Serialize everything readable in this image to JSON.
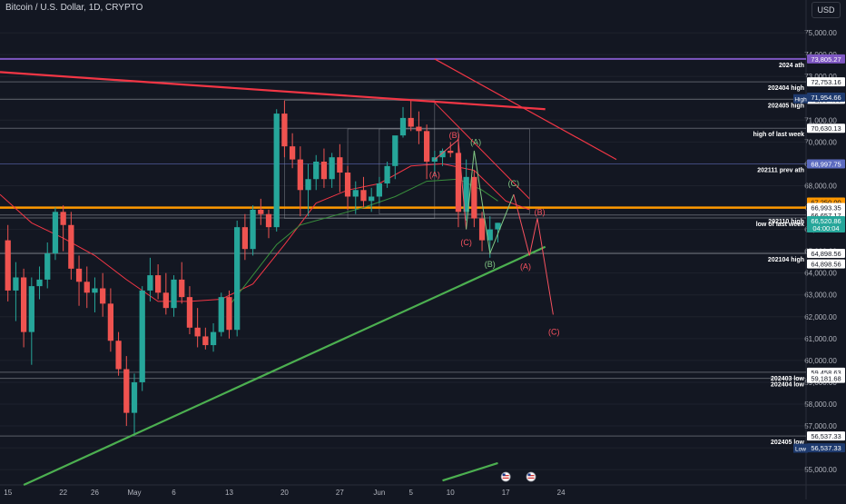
{
  "header": {
    "symbol_title": "Bitcoin / U.S. Dollar, 1D, CRYPTO",
    "currency_button": "USD"
  },
  "colors": {
    "background": "#131722",
    "up": "#26a69a",
    "down": "#ef5350",
    "purple": "#7e57c2",
    "orange": "#ff9800",
    "green_line": "#4caf50",
    "red_line": "#f23645",
    "ma_green": "#2e7d32",
    "level_line": "#9598a1",
    "wave_red": "#f7525f",
    "wave_green": "#81c784"
  },
  "icons": [
    "us-flag-event-icon",
    "us-flag-event-icon"
  ],
  "chart_data": {
    "type": "candlestick",
    "title": "Bitcoin / U.S. Dollar, 1D, CRYPTO",
    "ylim": [
      54300,
      76500
    ],
    "y_ticks": [
      55000,
      56000,
      57000,
      58000,
      59000,
      60000,
      61000,
      62000,
      63000,
      64000,
      65000,
      66000,
      67000,
      68000,
      69000,
      70000,
      71000,
      72000,
      73000,
      74000,
      75000
    ],
    "x_day_range": [
      -1,
      101
    ],
    "x_ticks": [
      {
        "label": "15",
        "day": 0
      },
      {
        "label": "22",
        "day": 7
      },
      {
        "label": "26",
        "day": 11
      },
      {
        "label": "May",
        "day": 16
      },
      {
        "label": "6",
        "day": 21
      },
      {
        "label": "13",
        "day": 28
      },
      {
        "label": "20",
        "day": 35
      },
      {
        "label": "27",
        "day": 42
      },
      {
        "label": "Jun",
        "day": 47
      },
      {
        "label": "5",
        "day": 51
      },
      {
        "label": "10",
        "day": 56
      },
      {
        "label": "17",
        "day": 63
      },
      {
        "label": "24",
        "day": 70
      }
    ],
    "candles": [
      {
        "day": 0,
        "o": 65500,
        "h": 66200,
        "l": 62700,
        "c": 63200
      },
      {
        "day": 1,
        "o": 63200,
        "h": 64500,
        "l": 61800,
        "c": 63800
      },
      {
        "day": 2,
        "o": 63800,
        "h": 64200,
        "l": 60600,
        "c": 61300
      },
      {
        "day": 3,
        "o": 61300,
        "h": 63800,
        "l": 59800,
        "c": 63400
      },
      {
        "day": 4,
        "o": 63400,
        "h": 64300,
        "l": 62800,
        "c": 63700
      },
      {
        "day": 5,
        "o": 63700,
        "h": 65400,
        "l": 63300,
        "c": 64900
      },
      {
        "day": 6,
        "o": 64900,
        "h": 67000,
        "l": 64600,
        "c": 66800
      },
      {
        "day": 7,
        "o": 66800,
        "h": 67100,
        "l": 65000,
        "c": 66200
      },
      {
        "day": 8,
        "o": 66200,
        "h": 66800,
        "l": 63700,
        "c": 64200
      },
      {
        "day": 9,
        "o": 64200,
        "h": 64800,
        "l": 62500,
        "c": 63600
      },
      {
        "day": 10,
        "o": 63600,
        "h": 64300,
        "l": 62400,
        "c": 63100
      },
      {
        "day": 11,
        "o": 63100,
        "h": 63800,
        "l": 62200,
        "c": 63300
      },
      {
        "day": 12,
        "o": 63300,
        "h": 64000,
        "l": 62000,
        "c": 62600
      },
      {
        "day": 13,
        "o": 62600,
        "h": 63300,
        "l": 60400,
        "c": 60900
      },
      {
        "day": 14,
        "o": 60900,
        "h": 61300,
        "l": 59300,
        "c": 59600
      },
      {
        "day": 15,
        "o": 59600,
        "h": 60200,
        "l": 57000,
        "c": 57600
      },
      {
        "day": 16,
        "o": 57600,
        "h": 59400,
        "l": 56550,
        "c": 59000
      },
      {
        "day": 17,
        "o": 59000,
        "h": 63400,
        "l": 58600,
        "c": 63200
      },
      {
        "day": 18,
        "o": 63200,
        "h": 64700,
        "l": 62700,
        "c": 63900
      },
      {
        "day": 19,
        "o": 63900,
        "h": 64400,
        "l": 62800,
        "c": 63100
      },
      {
        "day": 20,
        "o": 63100,
        "h": 64000,
        "l": 62100,
        "c": 62400
      },
      {
        "day": 21,
        "o": 62400,
        "h": 63900,
        "l": 62000,
        "c": 63700
      },
      {
        "day": 22,
        "o": 63700,
        "h": 64500,
        "l": 62600,
        "c": 62900
      },
      {
        "day": 23,
        "o": 62900,
        "h": 63400,
        "l": 61200,
        "c": 61500
      },
      {
        "day": 24,
        "o": 61500,
        "h": 62400,
        "l": 60600,
        "c": 61100
      },
      {
        "day": 25,
        "o": 61100,
        "h": 61500,
        "l": 60500,
        "c": 60700
      },
      {
        "day": 26,
        "o": 60700,
        "h": 61700,
        "l": 60400,
        "c": 61300
      },
      {
        "day": 27,
        "o": 61300,
        "h": 63100,
        "l": 61100,
        "c": 62900
      },
      {
        "day": 28,
        "o": 62900,
        "h": 63200,
        "l": 61000,
        "c": 61400
      },
      {
        "day": 29,
        "o": 61400,
        "h": 66400,
        "l": 61100,
        "c": 66100
      },
      {
        "day": 30,
        "o": 66100,
        "h": 66700,
        "l": 64600,
        "c": 65100
      },
      {
        "day": 31,
        "o": 65100,
        "h": 67100,
        "l": 64800,
        "c": 66900
      },
      {
        "day": 32,
        "o": 66900,
        "h": 67400,
        "l": 66200,
        "c": 66700
      },
      {
        "day": 33,
        "o": 66700,
        "h": 66900,
        "l": 65600,
        "c": 66100
      },
      {
        "day": 34,
        "o": 66100,
        "h": 71500,
        "l": 65900,
        "c": 71300
      },
      {
        "day": 35,
        "o": 71300,
        "h": 71900,
        "l": 69300,
        "c": 69800
      },
      {
        "day": 36,
        "o": 69800,
        "h": 70400,
        "l": 68800,
        "c": 69200
      },
      {
        "day": 37,
        "o": 69200,
        "h": 69800,
        "l": 66600,
        "c": 67800
      },
      {
        "day": 38,
        "o": 67800,
        "h": 69000,
        "l": 66600,
        "c": 68300
      },
      {
        "day": 39,
        "o": 68300,
        "h": 69400,
        "l": 67800,
        "c": 69100
      },
      {
        "day": 40,
        "o": 69100,
        "h": 69700,
        "l": 67900,
        "c": 68300
      },
      {
        "day": 41,
        "o": 68300,
        "h": 69500,
        "l": 67900,
        "c": 69300
      },
      {
        "day": 42,
        "o": 69300,
        "h": 69900,
        "l": 67700,
        "c": 68600
      },
      {
        "day": 43,
        "o": 68600,
        "h": 68900,
        "l": 66900,
        "c": 67500
      },
      {
        "day": 44,
        "o": 67500,
        "h": 68200,
        "l": 66700,
        "c": 67800
      },
      {
        "day": 45,
        "o": 67800,
        "h": 68400,
        "l": 67000,
        "c": 67300
      },
      {
        "day": 46,
        "o": 67300,
        "h": 67900,
        "l": 66800,
        "c": 67500
      },
      {
        "day": 47,
        "o": 67500,
        "h": 68400,
        "l": 67200,
        "c": 68100
      },
      {
        "day": 48,
        "o": 68100,
        "h": 69100,
        "l": 67900,
        "c": 68900
      },
      {
        "day": 49,
        "o": 68900,
        "h": 70200,
        "l": 68300,
        "c": 70300
      },
      {
        "day": 50,
        "o": 70300,
        "h": 71600,
        "l": 70200,
        "c": 71100
      },
      {
        "day": 51,
        "o": 71100,
        "h": 71900,
        "l": 70500,
        "c": 70700
      },
      {
        "day": 52,
        "o": 70700,
        "h": 71400,
        "l": 69900,
        "c": 70500
      },
      {
        "day": 53,
        "o": 70500,
        "h": 70800,
        "l": 68300,
        "c": 69100
      },
      {
        "day": 54,
        "o": 69100,
        "h": 69600,
        "l": 68500,
        "c": 69300
      },
      {
        "day": 55,
        "o": 69300,
        "h": 69700,
        "l": 68900,
        "c": 69600
      },
      {
        "day": 56,
        "o": 69600,
        "h": 70000,
        "l": 69300,
        "c": 69500
      },
      {
        "day": 57,
        "o": 69500,
        "h": 70200,
        "l": 66100,
        "c": 66800
      },
      {
        "day": 58,
        "o": 66800,
        "h": 69200,
        "l": 66400,
        "c": 68400
      },
      {
        "day": 59,
        "o": 68400,
        "h": 68700,
        "l": 66100,
        "c": 66500
      },
      {
        "day": 60,
        "o": 66500,
        "h": 66800,
        "l": 65000,
        "c": 65500
      },
      {
        "day": 61,
        "o": 65500,
        "h": 66600,
        "l": 64700,
        "c": 66000
      },
      {
        "day": 62,
        "o": 66000,
        "h": 66300,
        "l": 65400,
        "c": 66300
      }
    ],
    "levels": [
      {
        "name": "2024ath-line",
        "price": 73805.27,
        "color": "#7e57c2",
        "width": 2,
        "label": "2024 ath",
        "tag": "73,805.27",
        "tag_color": "#7e57c2"
      },
      {
        "name": "202404-high-line",
        "price": 72753.16,
        "color": "#9598a1",
        "width": 1,
        "label": "202404 high",
        "tag": "72,753.16",
        "tag_color": "#ffffff"
      },
      {
        "name": "202405-high-line",
        "price": 71954.66,
        "color": "#9598a1",
        "width": 1,
        "label": "202405 high",
        "tag": "71,954.66",
        "tag_color": "#ffffff"
      },
      {
        "name": "high-of-last-week-line",
        "price": 70630.13,
        "color": "#9598a1",
        "width": 1,
        "label": "high of last week",
        "tag": "70,630.13",
        "tag_color": "#ffffff"
      },
      {
        "name": "202111-prev-ath-line",
        "price": 68997.75,
        "color": "#5c6bc0",
        "width": 1,
        "label": "202111 prev ath",
        "tag": "68,997.75",
        "tag_color": "#5c6bc0"
      },
      {
        "name": "orange-line",
        "price": 66993.35,
        "color": "#ff9800",
        "width": 2.5,
        "label": "",
        "tag": "",
        "tag_color": ""
      },
      {
        "name": "202110-high-line",
        "price": 66657.17,
        "color": "#9598a1",
        "width": 1,
        "label": "202110 high",
        "tag": "66,657.17",
        "tag_color": "#ffffff"
      },
      {
        "name": "low-of-last-week-line",
        "price": 66520.86,
        "color": "#9598a1",
        "width": 1,
        "label": "low of last week",
        "tag": "",
        "tag_color": ""
      },
      {
        "name": "202104-high-line",
        "price": 64898.56,
        "color": "#d1d4dc",
        "width": 1,
        "label": "202104 high",
        "tag": "64,898.56",
        "tag_color": "#ffffff"
      },
      {
        "name": "202403-low-line",
        "price": 59458.63,
        "color": "#9598a1",
        "width": 1,
        "label": "202403 low",
        "tag": "59,458.63",
        "tag_color": "#ffffff"
      },
      {
        "name": "202404-low-line",
        "price": 59181.68,
        "color": "#9598a1",
        "width": 1,
        "label": "202404 low",
        "tag": "59,181.68",
        "tag_color": "#ffffff"
      },
      {
        "name": "202405-low-line",
        "price": 56537.33,
        "color": "#9598a1",
        "width": 1,
        "label": "202405 low",
        "tag": "56,537.33",
        "tag_color": "#ffffff"
      }
    ],
    "price_tags": [
      {
        "name": "orange-price-tag",
        "price": 67250,
        "text": "67,250.00",
        "bg": "#ff9800",
        "fg": "#131722"
      },
      {
        "name": "ma-price-tag",
        "price": 67000,
        "text": "66,993.35",
        "bg": "#ffffff",
        "fg": "#131722"
      },
      {
        "name": "current-price-tag",
        "price": 66400,
        "text": "66,520.86",
        "text2": "04:00:04",
        "bg": "#26a69a",
        "fg": "#ffffff"
      },
      {
        "name": "ma-red-tag",
        "price": 64420,
        "text": "64,898.56",
        "bg": "#ffffff",
        "fg": "#131722"
      }
    ],
    "side_badges": [
      {
        "name": "high-badge",
        "price": 71980,
        "text": "High"
      },
      {
        "name": "low-badge",
        "price": 55980,
        "text": "Low"
      }
    ],
    "extra_tags": [
      {
        "name": "high-value-tag",
        "price": 72050,
        "text": "71,954.66"
      },
      {
        "name": "low-value-tag",
        "price": 56000,
        "text": "56,537.33"
      }
    ],
    "trendlines": [
      {
        "name": "long-red-trendline",
        "color": "#f23645",
        "width": 2.2,
        "points": [
          [
            -1,
            73200
          ],
          [
            68,
            71500
          ]
        ]
      },
      {
        "name": "steep-red-trendline",
        "color": "#f23645",
        "width": 1.2,
        "points": [
          [
            54,
            73800
          ],
          [
            77,
            69200
          ]
        ]
      },
      {
        "name": "green-support-trendline",
        "color": "#4caf50",
        "width": 2.2,
        "points": [
          [
            2,
            54300
          ],
          [
            68,
            65200
          ]
        ]
      },
      {
        "name": "green-support-stub",
        "color": "#4caf50",
        "width": 2.2,
        "points": [
          [
            55,
            54500
          ],
          [
            62,
            55300
          ]
        ]
      },
      {
        "name": "channel-upper-line",
        "color": "#f23645",
        "width": 1,
        "points": [
          [
            54,
            71800
          ],
          [
            66,
            67400
          ]
        ]
      }
    ],
    "ma_lines": [
      {
        "name": "red-moving-average",
        "color": "#f23645",
        "width": 1,
        "points": [
          [
            -1,
            67600
          ],
          [
            3,
            66300
          ],
          [
            7,
            65600
          ],
          [
            11,
            64800
          ],
          [
            15,
            63700
          ],
          [
            19,
            62700
          ],
          [
            23,
            62700
          ],
          [
            27,
            62800
          ],
          [
            31,
            63500
          ],
          [
            35,
            65300
          ],
          [
            39,
            67200
          ],
          [
            43,
            67800
          ],
          [
            47,
            68100
          ],
          [
            51,
            68900
          ],
          [
            55,
            69000
          ],
          [
            59,
            68700
          ],
          [
            63,
            67300
          ],
          [
            66,
            66900
          ]
        ]
      },
      {
        "name": "green-moving-average",
        "color": "#388e3c",
        "width": 1,
        "points": [
          [
            28,
            62500
          ],
          [
            31,
            63900
          ],
          [
            34,
            65300
          ],
          [
            37,
            66200
          ],
          [
            41,
            66600
          ],
          [
            45,
            67000
          ],
          [
            49,
            67500
          ],
          [
            53,
            68200
          ],
          [
            57,
            68300
          ],
          [
            60,
            67800
          ],
          [
            62,
            67300
          ]
        ]
      }
    ],
    "boxes": [
      {
        "name": "range-box-1",
        "x0": 35,
        "x1": 54,
        "y0": 66500,
        "y1": 71900,
        "color": "#9598a1"
      },
      {
        "name": "range-box-2",
        "x0": 43,
        "x1": 57,
        "y0": 66500,
        "y1": 70600,
        "color": "#9598a1"
      },
      {
        "name": "range-box-3",
        "x0": 47,
        "x1": 66,
        "y0": 66700,
        "y1": 70600,
        "color": "#9598a1"
      }
    ],
    "wave_paths": [
      {
        "name": "red-abc-wave-past",
        "color": "#f7525f",
        "points": [
          [
            54,
            69200
          ],
          [
            57,
            70100
          ],
          [
            58,
            66000
          ]
        ]
      },
      {
        "name": "green-abc-wave-past",
        "color": "#81c784",
        "points": [
          [
            58,
            66000
          ],
          [
            59,
            69600
          ],
          [
            61,
            64900
          ],
          [
            64,
            67600
          ]
        ]
      },
      {
        "name": "red-abc-wave-projection",
        "color": "#f7525f",
        "points": [
          [
            64,
            67600
          ],
          [
            66,
            64800
          ],
          [
            67,
            66500
          ],
          [
            69,
            62100
          ]
        ]
      }
    ],
    "wave_labels": [
      {
        "name": "wave-label-a-red",
        "text": "(A)",
        "day": 54,
        "price": 68500,
        "color": "#f7525f"
      },
      {
        "name": "wave-label-b-red",
        "text": "(B)",
        "day": 56.5,
        "price": 70300,
        "color": "#f7525f"
      },
      {
        "name": "wave-label-c-red",
        "text": "(C)",
        "day": 58,
        "price": 65400,
        "color": "#f7525f"
      },
      {
        "name": "wave-label-a-green",
        "text": "(A)",
        "day": 59.2,
        "price": 70000,
        "color": "#81c784"
      },
      {
        "name": "wave-label-b-green",
        "text": "(B)",
        "day": 61,
        "price": 64400,
        "color": "#81c784"
      },
      {
        "name": "wave-label-c-green",
        "text": "(C)",
        "day": 64,
        "price": 68100,
        "color": "#81c784"
      },
      {
        "name": "wave-label-a-proj",
        "text": "(A)",
        "day": 65.5,
        "price": 64300,
        "color": "#f7525f"
      },
      {
        "name": "wave-label-b-proj",
        "text": "(B)",
        "day": 67.3,
        "price": 66800,
        "color": "#f7525f"
      },
      {
        "name": "wave-label-c-proj",
        "text": "(C)",
        "day": 69.1,
        "price": 61300,
        "color": "#f7525f"
      }
    ],
    "events": [
      {
        "name": "us-event-icon-1",
        "day": 63
      },
      {
        "name": "us-event-icon-2",
        "day": 66.2
      }
    ]
  }
}
